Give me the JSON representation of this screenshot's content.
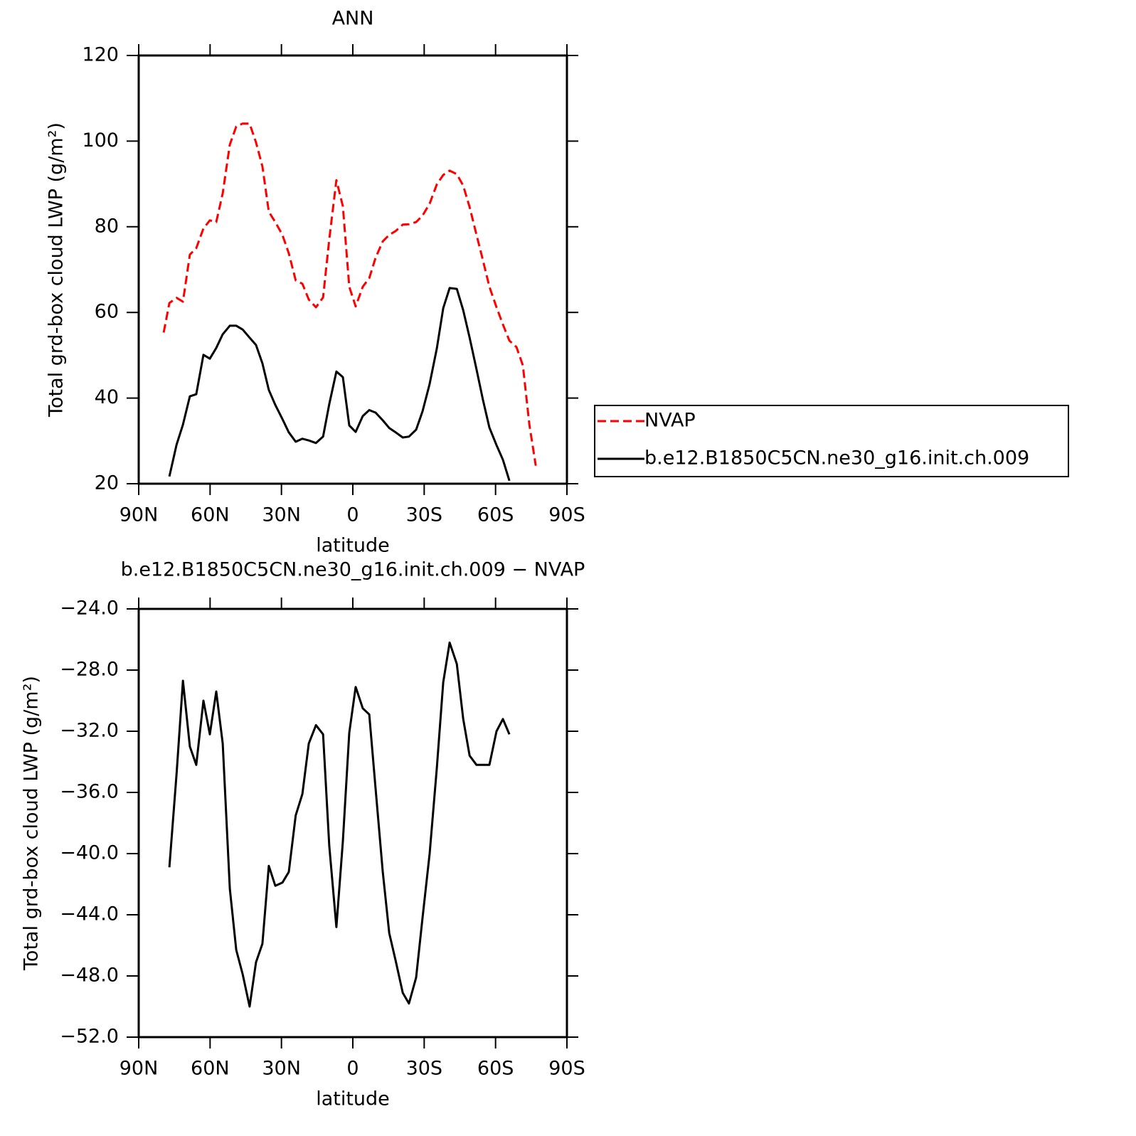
{
  "chart_data": [
    {
      "type": "line",
      "title": "ANN",
      "xlabel": "latitude",
      "ylabel": "Total grd-box cloud LWP (g/m²)",
      "x": [
        79.5,
        77.1,
        74.1,
        71.4,
        68.5,
        65.8,
        62.8,
        60.1,
        57.4,
        54.7,
        51.7,
        49.0,
        46.3,
        43.4,
        40.7,
        38.0,
        35.3,
        32.6,
        29.6,
        26.9,
        24.0,
        21.2,
        18.5,
        15.5,
        12.5,
        9.9,
        6.9,
        4.2,
        1.5,
        -1.2,
        -4.2,
        -6.9,
        -9.6,
        -12.6,
        -15.3,
        -18.0,
        -21.0,
        -23.6,
        -26.6,
        -29.3,
        -32.3,
        -35.3,
        -38.0,
        -40.7,
        -43.7,
        -46.4,
        -49.1,
        -52.0,
        -54.7,
        -57.4,
        -60.4,
        -63.1,
        -65.8,
        -68.8,
        -71.5,
        -74.2,
        -76.9
      ],
      "series": [
        {
          "name": "NVAP",
          "color": "#ff0000",
          "linestyle": "dashed",
          "values": [
            55.3,
            62.2,
            63.4,
            62.5,
            73.5,
            75.0,
            79.6,
            81.5,
            81.1,
            87.8,
            99.2,
            103.4,
            104.1,
            104.1,
            99.7,
            94.1,
            83.5,
            81.1,
            78.1,
            73.8,
            67.5,
            66.7,
            63.0,
            61.2,
            63.5,
            77.1,
            90.9,
            84.8,
            66.0,
            61.4,
            66.0,
            68.0,
            72.8,
            76.6,
            78.1,
            79.0,
            80.5,
            80.6,
            81.1,
            82.6,
            85.4,
            89.9,
            92.1,
            93.1,
            92.3,
            89.6,
            84.6,
            78.1,
            72.2,
            66.0,
            61.2,
            57.2,
            53.4,
            51.9,
            47.6,
            33.8,
            24.2
          ]
        },
        {
          "name": "b.e12.B1850C5CN.ne30_g16.init.ch.009",
          "color": "#000000",
          "linestyle": "solid",
          "values": [
            null,
            21.7,
            29.1,
            33.8,
            40.4,
            40.9,
            50.1,
            49.2,
            51.7,
            54.9,
            56.9,
            56.9,
            56.0,
            54.1,
            52.4,
            48.1,
            41.9,
            38.4,
            35.1,
            32.0,
            29.8,
            30.5,
            30.1,
            29.5,
            31.0,
            38.6,
            46.2,
            44.9,
            33.6,
            32.1,
            35.8,
            37.2,
            36.6,
            34.8,
            33.0,
            32.0,
            30.8,
            31.0,
            32.6,
            36.9,
            43.3,
            51.6,
            61.0,
            65.7,
            65.5,
            60.5,
            54.1,
            46.7,
            39.6,
            33.1,
            29.0,
            25.6,
            20.7,
            null,
            null,
            null,
            null
          ]
        }
      ],
      "xlim": [
        90,
        -90
      ],
      "xticks": [
        {
          "value": 90,
          "label": "90N"
        },
        {
          "value": 60,
          "label": "60N"
        },
        {
          "value": 30,
          "label": "30N"
        },
        0,
        {
          "value": -30,
          "label": "30S"
        },
        {
          "value": -60,
          "label": "60S"
        },
        {
          "value": -90,
          "label": "90S"
        }
      ],
      "ylim": [
        20,
        120
      ],
      "yticks": [
        20,
        40,
        60,
        80,
        100,
        120
      ],
      "legend": "right"
    },
    {
      "type": "line",
      "title": "b.e12.B1850C5CN.ne30_g16.init.ch.009 − NVAP",
      "xlabel": "latitude",
      "ylabel": "Total grd-box cloud LWP (g/m²)",
      "x": [
        77.1,
        74.1,
        71.4,
        68.5,
        65.8,
        62.8,
        60.1,
        57.4,
        54.7,
        51.7,
        49.0,
        46.3,
        43.4,
        40.7,
        38.0,
        35.3,
        32.6,
        29.6,
        26.9,
        24.0,
        21.2,
        18.5,
        15.5,
        12.5,
        9.9,
        6.9,
        4.2,
        1.5,
        -1.2,
        -4.2,
        -6.9,
        -9.6,
        -12.6,
        -15.3,
        -18.0,
        -21.0,
        -23.6,
        -26.6,
        -29.3,
        -32.3,
        -35.3,
        -38.0,
        -40.7,
        -43.7,
        -46.4,
        -49.1,
        -52.0,
        -54.7,
        -57.4,
        -60.4,
        -63.1,
        -65.8
      ],
      "values": [
        -40.9,
        -34.8,
        -28.7,
        -33.0,
        -34.2,
        -30.0,
        -32.2,
        -29.4,
        -32.8,
        -42.3,
        -46.3,
        -47.9,
        -50.0,
        -47.1,
        -45.9,
        -40.8,
        -42.1,
        -41.9,
        -41.2,
        -37.5,
        -36.1,
        -32.8,
        -31.6,
        -32.2,
        -39.5,
        -44.8,
        -39.2,
        -32.1,
        -29.1,
        -30.5,
        -30.9,
        -35.8,
        -41.2,
        -45.2,
        -47.0,
        -49.1,
        -49.8,
        -48.1,
        -44.2,
        -40.0,
        -34.4,
        -28.8,
        -26.2,
        -27.6,
        -31.2,
        -33.6,
        -34.2,
        -34.2,
        -34.2,
        -32.0,
        -31.2,
        -32.2
      ],
      "color": "#000000",
      "xlim": [
        90,
        -90
      ],
      "xticks": [
        {
          "value": 90,
          "label": "90N"
        },
        {
          "value": 60,
          "label": "60N"
        },
        {
          "value": 30,
          "label": "30N"
        },
        0,
        {
          "value": -30,
          "label": "30S"
        },
        {
          "value": -60,
          "label": "60S"
        },
        {
          "value": -90,
          "label": "90S"
        }
      ],
      "ylim": [
        -52,
        -24
      ],
      "yticks": [
        {
          "value": -52,
          "label": "−52.0"
        },
        {
          "value": -48,
          "label": "−48.0"
        },
        {
          "value": -44,
          "label": "−44.0"
        },
        {
          "value": -40,
          "label": "−40.0"
        },
        {
          "value": -36,
          "label": "−36.0"
        },
        {
          "value": -32,
          "label": "−32.0"
        },
        {
          "value": -28,
          "label": "−28.0"
        },
        {
          "value": -24,
          "label": "−24.0"
        }
      ]
    }
  ]
}
